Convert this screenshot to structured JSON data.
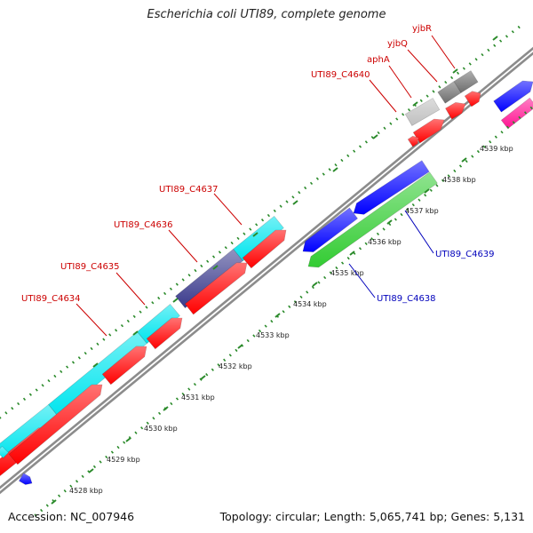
{
  "title": "Escherichia coli UTI89, complete genome",
  "footer": {
    "accession": "Accession: NC_007946",
    "summary": "Topology: circular; Length: 5,065,741 bp; Genes: 5,131"
  },
  "colors": {
    "backbone": "#8c8c8c",
    "tick": "#2a8a2a",
    "label_forward": "#cc0000",
    "label_reverse": "#0000bb"
  },
  "scale_ticks": [
    {
      "label": "4528 kbp"
    },
    {
      "label": "4529 kbp"
    },
    {
      "label": "4530 kbp"
    },
    {
      "label": "4531 kbp"
    },
    {
      "label": "4532 kbp"
    },
    {
      "label": "4533 kbp"
    },
    {
      "label": "4534 kbp"
    },
    {
      "label": "4535 kbp"
    },
    {
      "label": "4536 kbp"
    },
    {
      "label": "4537 kbp"
    },
    {
      "label": "4538 kbp"
    },
    {
      "label": "4539 kbp"
    }
  ],
  "gene_labels": [
    {
      "name": "UTI89_C4634",
      "strand": "forward"
    },
    {
      "name": "UTI89_C4635",
      "strand": "forward"
    },
    {
      "name": "UTI89_C4636",
      "strand": "forward"
    },
    {
      "name": "UTI89_C4637",
      "strand": "forward"
    },
    {
      "name": "UTI89_C4640",
      "strand": "forward"
    },
    {
      "name": "aphA",
      "strand": "forward"
    },
    {
      "name": "yjbQ",
      "strand": "forward"
    },
    {
      "name": "yjbR",
      "strand": "forward"
    },
    {
      "name": "UTI89_C4639",
      "strand": "reverse"
    },
    {
      "name": "UTI89_C4638",
      "strand": "reverse"
    }
  ]
}
